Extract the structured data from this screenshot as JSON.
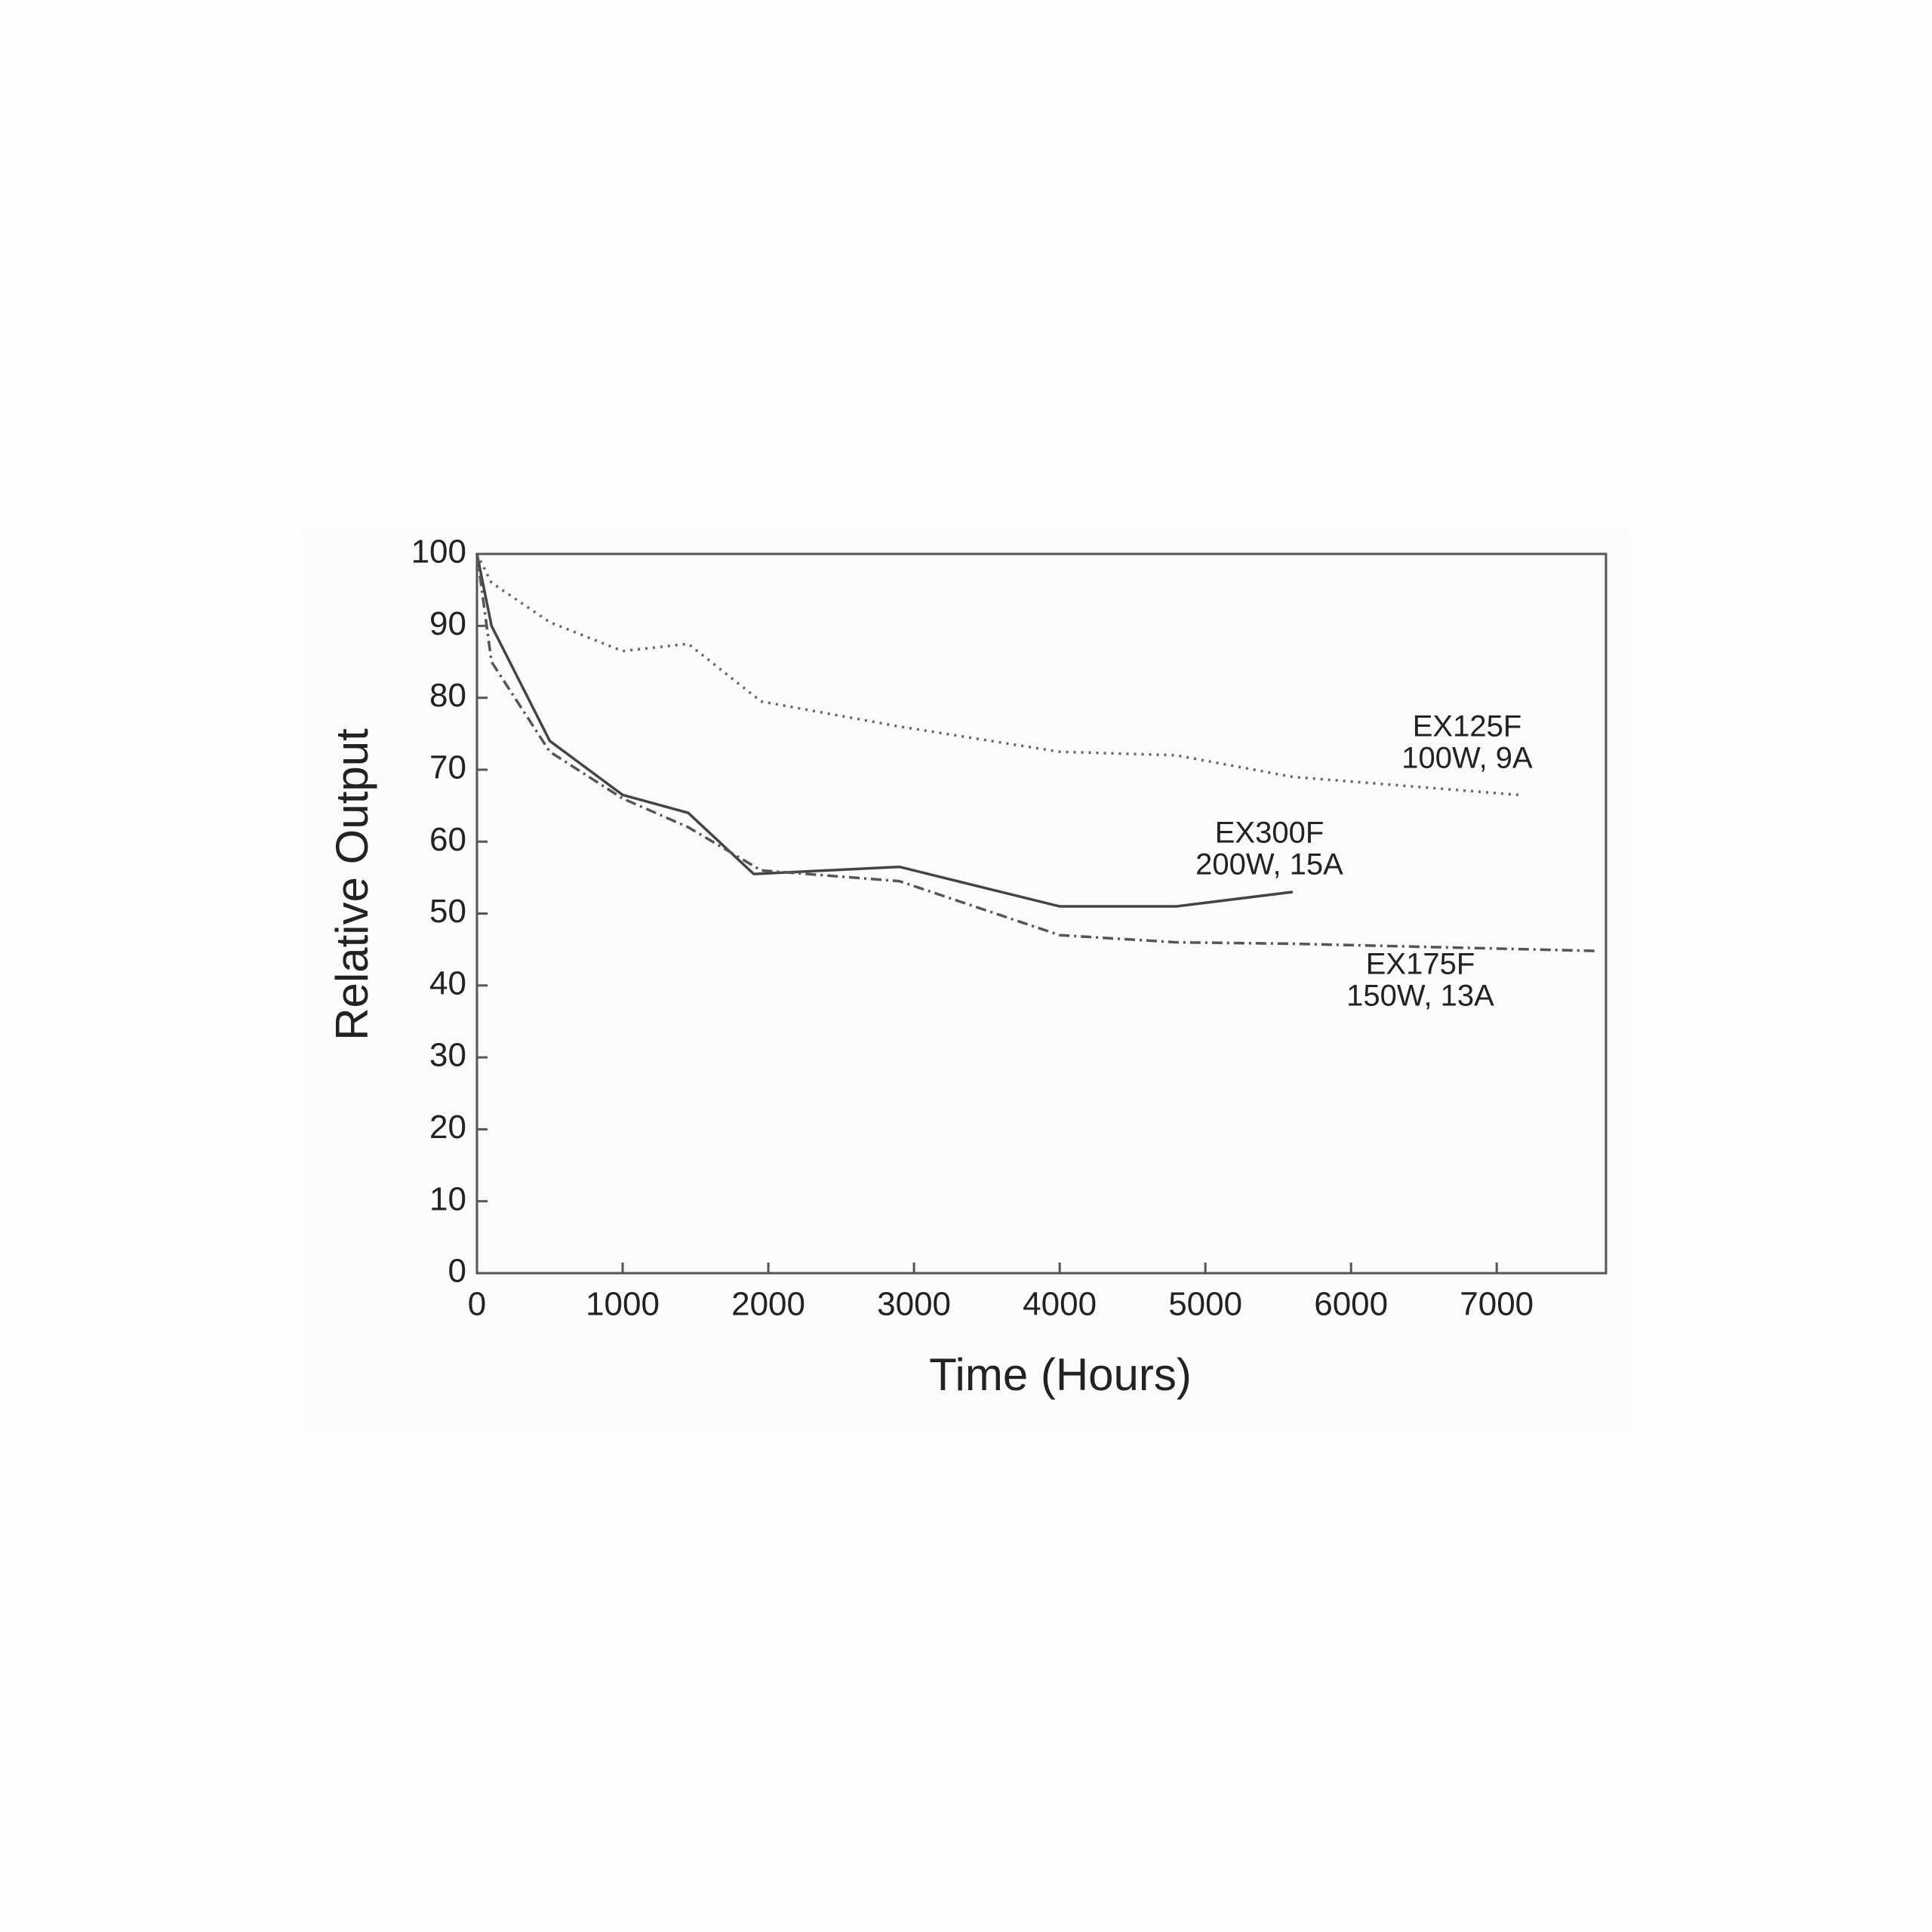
{
  "chart_data": {
    "type": "line",
    "x_label": "Time (Hours)",
    "y_label": "Relative Output",
    "xlim": [
      0,
      7750
    ],
    "ylim": [
      0,
      100
    ],
    "xticks": [
      0,
      1000,
      2000,
      3000,
      4000,
      5000,
      6000,
      7000
    ],
    "yticks": [
      0,
      10,
      20,
      30,
      40,
      50,
      60,
      70,
      80,
      90,
      100
    ],
    "grid": false,
    "series": [
      {
        "name": "EX125F",
        "note": "100W, 9A",
        "color": "#666666",
        "dash": "dotted",
        "x": [
          0,
          100,
          500,
          1000,
          1450,
          1950,
          2900,
          4000,
          4800,
          5600,
          7150
        ],
        "values": [
          100,
          96,
          90.5,
          86.5,
          87.5,
          79.5,
          76,
          72.5,
          72,
          69,
          66.5
        ]
      },
      {
        "name": "EX300F",
        "note": "200W, 15A",
        "color": "#444444",
        "dash": "solid",
        "x": [
          0,
          100,
          500,
          1000,
          1450,
          1900,
          2900,
          4000,
          4800,
          5600
        ],
        "values": [
          100,
          90,
          74,
          66.5,
          64,
          55.5,
          56.5,
          51,
          51,
          53
        ]
      },
      {
        "name": "EX175F",
        "note": "150W, 13A",
        "color": "#555555",
        "dash": "dashdot",
        "x": [
          0,
          100,
          500,
          1000,
          1450,
          1950,
          2900,
          4000,
          4800,
          5600,
          7700
        ],
        "values": [
          100,
          85,
          72.5,
          66,
          62,
          56,
          54.5,
          47,
          46,
          45.8,
          44.8
        ]
      }
    ]
  }
}
